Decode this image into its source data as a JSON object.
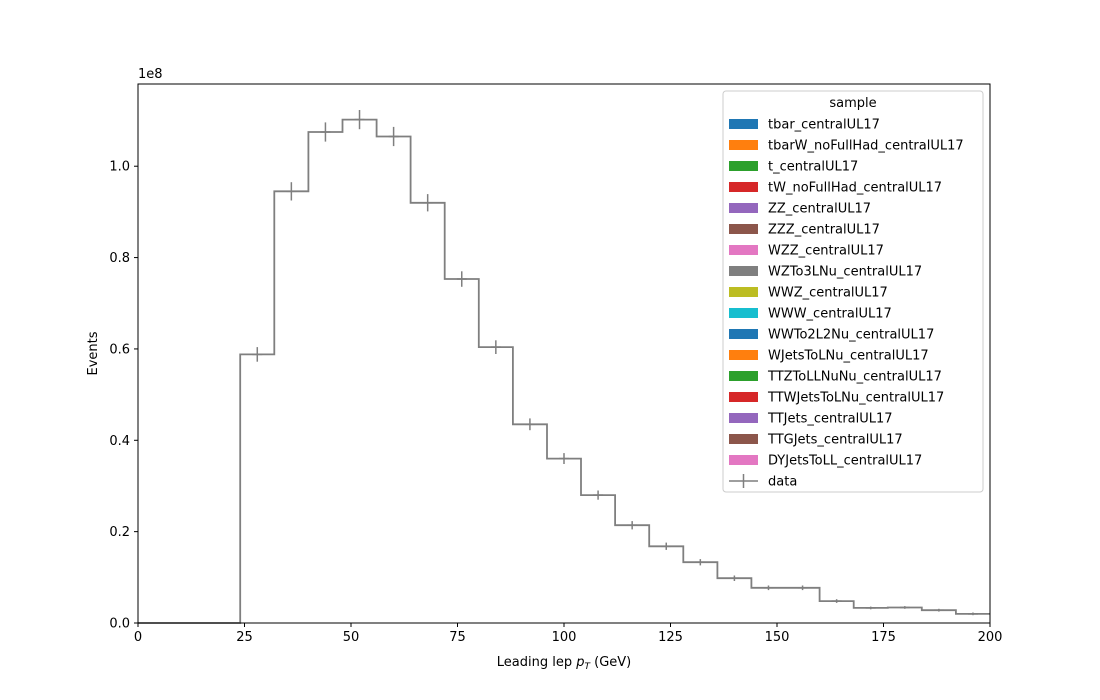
{
  "chart_data": {
    "type": "histogram",
    "xlabel_main": "Leading lep ",
    "xlabel_sym": "p",
    "xlabel_sub": "T",
    "xlabel_unit": " (GeV)",
    "ylabel": "Events",
    "y_offset_text": "1e8",
    "y_scale": 100000000,
    "xlim": [
      0,
      200
    ],
    "ylim": [
      0,
      1.18
    ],
    "x_ticks": [
      0,
      25,
      50,
      75,
      100,
      125,
      150,
      175,
      200
    ],
    "x_tick_labels": [
      "0",
      "25",
      "50",
      "75",
      "100",
      "125",
      "150",
      "175",
      "200"
    ],
    "y_ticks": [
      0.0,
      0.2,
      0.4,
      0.6,
      0.8,
      1.0
    ],
    "y_tick_labels": [
      "0.0",
      "0.2",
      "0.4",
      "0.6",
      "0.8",
      "1.0"
    ],
    "bin_edges": [
      0,
      24,
      32,
      40,
      48,
      56,
      64,
      72,
      80,
      88,
      96,
      104,
      112,
      120,
      128,
      136,
      144,
      152,
      160,
      168,
      176,
      184,
      192,
      200
    ],
    "series": [
      {
        "name": "data",
        "color": "#7f7f7f",
        "values": [
          0.0,
          0.588,
          0.945,
          1.075,
          1.102,
          1.065,
          0.92,
          0.753,
          0.604,
          0.435,
          0.36,
          0.28,
          0.214,
          0.168,
          0.133,
          0.098,
          0.077,
          0.077,
          0.048,
          0.033,
          0.034,
          0.028,
          0.02
        ],
        "errors": [
          0.0,
          0.016,
          0.02,
          0.021,
          0.021,
          0.021,
          0.019,
          0.017,
          0.015,
          0.013,
          0.012,
          0.01,
          0.009,
          0.008,
          0.007,
          0.006,
          0.005,
          0.005,
          0.004,
          0.003,
          0.003,
          0.003,
          0.003
        ]
      }
    ],
    "legend": {
      "title": "sample",
      "placement": "top-right",
      "entries": [
        {
          "label": "tbar_centralUL17",
          "color": "#1f77b4",
          "kind": "patch"
        },
        {
          "label": "tbarW_noFullHad_centralUL17",
          "color": "#ff7f0e",
          "kind": "patch"
        },
        {
          "label": "t_centralUL17",
          "color": "#2ca02c",
          "kind": "patch"
        },
        {
          "label": "tW_noFullHad_centralUL17",
          "color": "#d62728",
          "kind": "patch"
        },
        {
          "label": "ZZ_centralUL17",
          "color": "#9467bd",
          "kind": "patch"
        },
        {
          "label": "ZZZ_centralUL17",
          "color": "#8c564b",
          "kind": "patch"
        },
        {
          "label": "WZZ_centralUL17",
          "color": "#e377c2",
          "kind": "patch"
        },
        {
          "label": "WZTo3LNu_centralUL17",
          "color": "#7f7f7f",
          "kind": "patch"
        },
        {
          "label": "WWZ_centralUL17",
          "color": "#bcbd22",
          "kind": "patch"
        },
        {
          "label": "WWW_centralUL17",
          "color": "#17becf",
          "kind": "patch"
        },
        {
          "label": "WWTo2L2Nu_centralUL17",
          "color": "#1f77b4",
          "kind": "patch"
        },
        {
          "label": "WJetsToLNu_centralUL17",
          "color": "#ff7f0e",
          "kind": "patch"
        },
        {
          "label": "TTZToLLNuNu_centralUL17",
          "color": "#2ca02c",
          "kind": "patch"
        },
        {
          "label": "TTWJetsToLNu_centralUL17",
          "color": "#d62728",
          "kind": "patch"
        },
        {
          "label": "TTJets_centralUL17",
          "color": "#9467bd",
          "kind": "patch"
        },
        {
          "label": "TTGJets_centralUL17",
          "color": "#8c564b",
          "kind": "patch"
        },
        {
          "label": "DYJetsToLL_centralUL17",
          "color": "#e377c2",
          "kind": "patch"
        },
        {
          "label": "data",
          "color": "#7f7f7f",
          "kind": "errorbar"
        }
      ]
    },
    "grid": false
  }
}
